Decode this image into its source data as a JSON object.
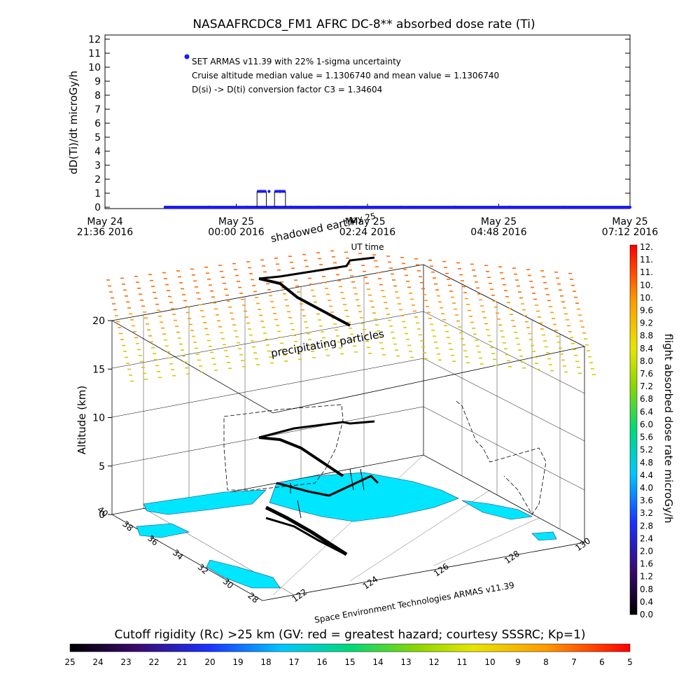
{
  "figure_title": "NASAAFRCDC8_FM1 AFRC DC-8** absorbed dose rate (Ti)",
  "chart_data": [
    {
      "type": "scatter",
      "title": "NASAAFRCDC8_FM1 AFRC DC-8** absorbed dose rate (Ti)",
      "ylabel": "dD(Ti)/dt microGy/h",
      "xlabel": "UT time",
      "ylim": [
        0,
        12
      ],
      "yticks": [
        "0",
        "1",
        "2",
        "3",
        "4",
        "5",
        "6",
        "7",
        "8",
        "9",
        "10",
        "11",
        "12"
      ],
      "xticks": [
        {
          "line1": "May 24",
          "line2": "21:36 2016"
        },
        {
          "line1": "May 25",
          "line2": "00:00 2016"
        },
        {
          "line1": "May 25",
          "line2": "02:24 2016"
        },
        {
          "line1": "May 25",
          "line2": "04:48 2016"
        },
        {
          "line1": "May 25",
          "line2": "07:12 2016"
        }
      ],
      "annotations": [
        "SET ARMAS v11.39 with 22% 1-sigma uncertainty",
        "Cruise altitude median value = 1.1306740 and mean value = 1.1306740",
        "D(si) -> D(ti) conversion factor C3 = 1.34604"
      ],
      "series": [
        {
          "name": "SET ARMAS v11.39 with 22% 1-sigma uncertainty",
          "color": "#1a1aff",
          "x_hours": [
            -1.3,
            -0.5,
            0.2,
            0.45,
            0.6,
            0.8,
            1.0,
            1.5,
            2.0,
            3.0,
            4.0,
            5.0,
            6.0,
            7.2
          ],
          "y": [
            0,
            0,
            0,
            1.13,
            1.13,
            1.13,
            0,
            0,
            0,
            0,
            0,
            0,
            0,
            0
          ]
        }
      ]
    },
    {
      "type": "scatter",
      "subtype": "3d-flight-track",
      "zlabel": "Altitude (km)",
      "zticks": [
        "0",
        "5",
        "10",
        "15",
        "20"
      ],
      "lat_ticks": [
        "40",
        "38",
        "36",
        "34",
        "32",
        "30",
        "28"
      ],
      "lon_ticks": [
        "122",
        "124",
        "126",
        "128",
        "130"
      ],
      "annotations": [
        "shadowed earth",
        "May 25",
        "precipitating particles"
      ],
      "footer": "Space Environment Technologies ARMAS v11.39"
    },
    {
      "type": "heatmap",
      "colorbar_label": "flight absorbed dose rate microGy/h",
      "colorbar_ticks": [
        "0.0",
        "0.4",
        "0.8",
        "1.2",
        "1.6",
        "2.0",
        "2.4",
        "2.8",
        "3.2",
        "3.6",
        "4.0",
        "4.4",
        "4.8",
        "5.2",
        "5.6",
        "6.0",
        "6.4",
        "6.8",
        "7.2",
        "7.6",
        "8.0",
        "8.4",
        "8.8",
        "9.2",
        "9.6",
        "10.",
        "10.",
        "11.",
        "11.",
        "12."
      ],
      "range": [
        0,
        12
      ]
    },
    {
      "type": "heatmap",
      "colorbar_label": "Cutoff rigidity (Rc) >25 km (GV: red = greatest hazard; courtesy SSSRC; Kp=1)",
      "colorbar_ticks": [
        "25",
        "24",
        "23",
        "22",
        "21",
        "20",
        "19",
        "18",
        "17",
        "16",
        "15",
        "14",
        "13",
        "12",
        "11",
        "10",
        "9",
        "8",
        "7",
        "6",
        "5"
      ],
      "range": [
        25,
        5
      ]
    }
  ]
}
